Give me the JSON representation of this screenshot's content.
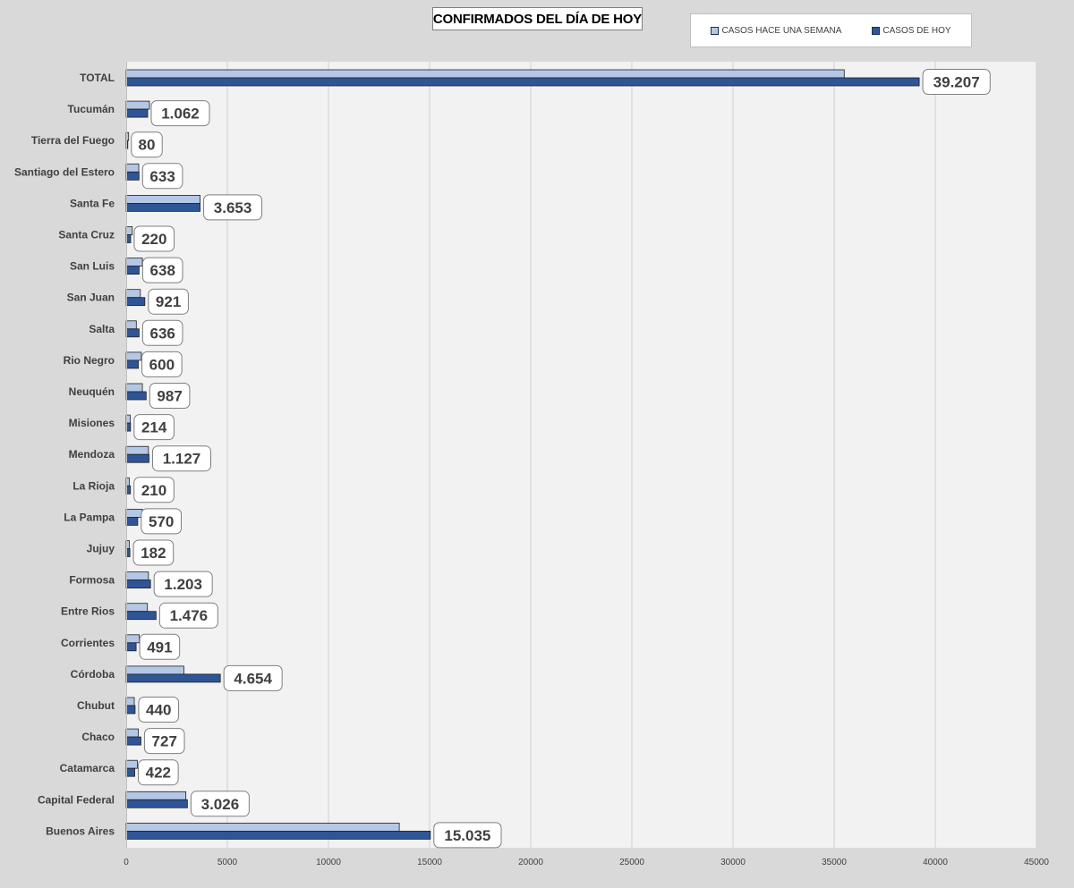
{
  "chart_data": {
    "type": "bar",
    "orientation": "horizontal",
    "title": "CONFIRMADOS DEL DÍA DE HOY",
    "legend_position": "top-right",
    "grid": true,
    "xlim": [
      0,
      45000
    ],
    "x_ticks": [
      0,
      5000,
      10000,
      15000,
      20000,
      25000,
      30000,
      35000,
      40000,
      45000
    ],
    "categories": [
      "TOTAL",
      "Tucumán",
      "Tierra del Fuego",
      "Santiago del Estero",
      "Santa Fe",
      "Santa Cruz",
      "San Luis",
      "San Juan",
      "Salta",
      "Rio Negro",
      "Neuquén",
      "Misiones",
      "Mendoza",
      "La Rioja",
      "La Pampa",
      "Jujuy",
      "Formosa",
      "Entre Rios",
      "Corrientes",
      "Córdoba",
      "Chubut",
      "Chaco",
      "Catamarca",
      "Capital Federal",
      "Buenos Aires"
    ],
    "series": [
      {
        "name": "CASOS HACE UNA SEMANA",
        "color": "#b4c7e7",
        "values": [
          35500,
          1150,
          120,
          620,
          3650,
          300,
          800,
          700,
          500,
          750,
          800,
          200,
          1100,
          150,
          800,
          150,
          1100,
          1050,
          650,
          2850,
          400,
          600,
          550,
          2950,
          13500
        ]
      },
      {
        "name": "CASOS DE HOY",
        "color": "#2f5597",
        "values": [
          39207,
          1062,
          80,
          633,
          3653,
          220,
          638,
          921,
          636,
          600,
          987,
          214,
          1127,
          210,
          570,
          182,
          1203,
          1476,
          491,
          4654,
          440,
          727,
          422,
          3026,
          15035
        ],
        "data_labels": [
          "39.207",
          "1.062",
          "80",
          "633",
          "3.653",
          "220",
          "638",
          "921",
          "636",
          "600",
          "987",
          "214",
          "1.127",
          "210",
          "570",
          "182",
          "1.203",
          "1.476",
          "491",
          "4.654",
          "440",
          "727",
          "422",
          "3.026",
          "15.035"
        ]
      }
    ]
  }
}
